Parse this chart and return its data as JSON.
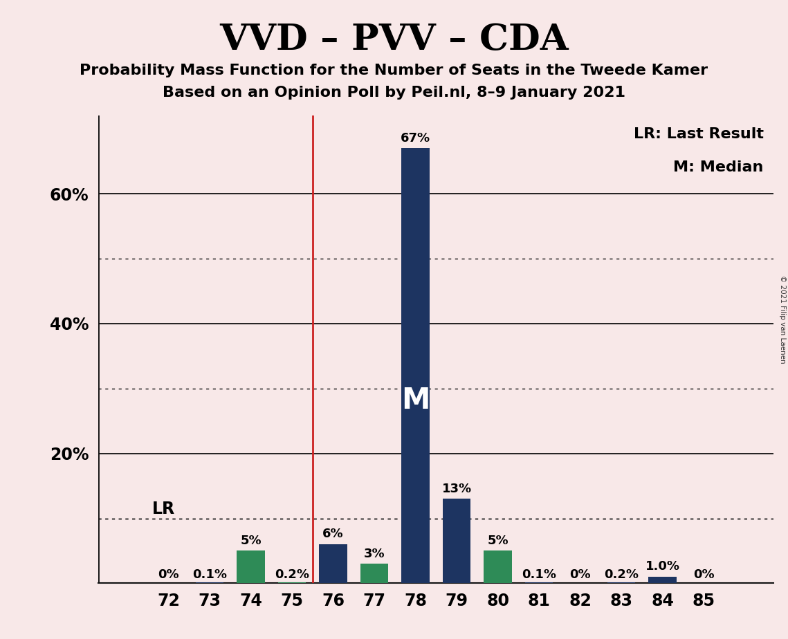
{
  "title": "VVD – PVV – CDA",
  "subtitle1": "Probability Mass Function for the Number of Seats in the Tweede Kamer",
  "subtitle2": "Based on an Opinion Poll by Peil.nl, 8–9 January 2021",
  "copyright": "© 2021 Filip van Laenen",
  "seats": [
    72,
    73,
    74,
    75,
    76,
    77,
    78,
    79,
    80,
    81,
    82,
    83,
    84,
    85
  ],
  "values": [
    0.0,
    0.001,
    0.05,
    0.002,
    0.06,
    0.03,
    0.67,
    0.13,
    0.05,
    0.001,
    0.0,
    0.002,
    0.01,
    0.0
  ],
  "labels": [
    "0%",
    "0.1%",
    "5%",
    "0.2%",
    "6%",
    "3%",
    "67%",
    "13%",
    "5%",
    "0.1%",
    "0%",
    "0.2%",
    "1.0%",
    "0%"
  ],
  "bar_colors": [
    "#1d3461",
    "#1d3461",
    "#2e8b57",
    "#2e8b57",
    "#1d3461",
    "#2e8b57",
    "#1d3461",
    "#1d3461",
    "#2e8b57",
    "#1d3461",
    "#1d3461",
    "#1d3461",
    "#1d3461",
    "#1d3461"
  ],
  "background_color": "#f8e8e8",
  "median_seat": 78,
  "lr_seat": 75.5,
  "legend_lr": "LR: Last Result",
  "legend_m": "M: Median",
  "median_label": "M",
  "lr_text": "LR",
  "ylim_max": 0.72,
  "ytick_values": [
    0.2,
    0.4,
    0.6
  ],
  "ytick_labels": [
    "20%",
    "40%",
    "60%"
  ],
  "solid_yticks": [
    0.2,
    0.4,
    0.6
  ],
  "dotted_yticks": [
    0.1,
    0.3,
    0.5
  ],
  "lr_line_color": "#cc2222",
  "navy_color": "#1d3461",
  "teal_color": "#2e8b57",
  "bar_width": 0.68,
  "label_fontsize": 13,
  "tick_fontsize": 17,
  "title_fontsize": 38,
  "subtitle_fontsize": 16,
  "legend_fontsize": 16
}
